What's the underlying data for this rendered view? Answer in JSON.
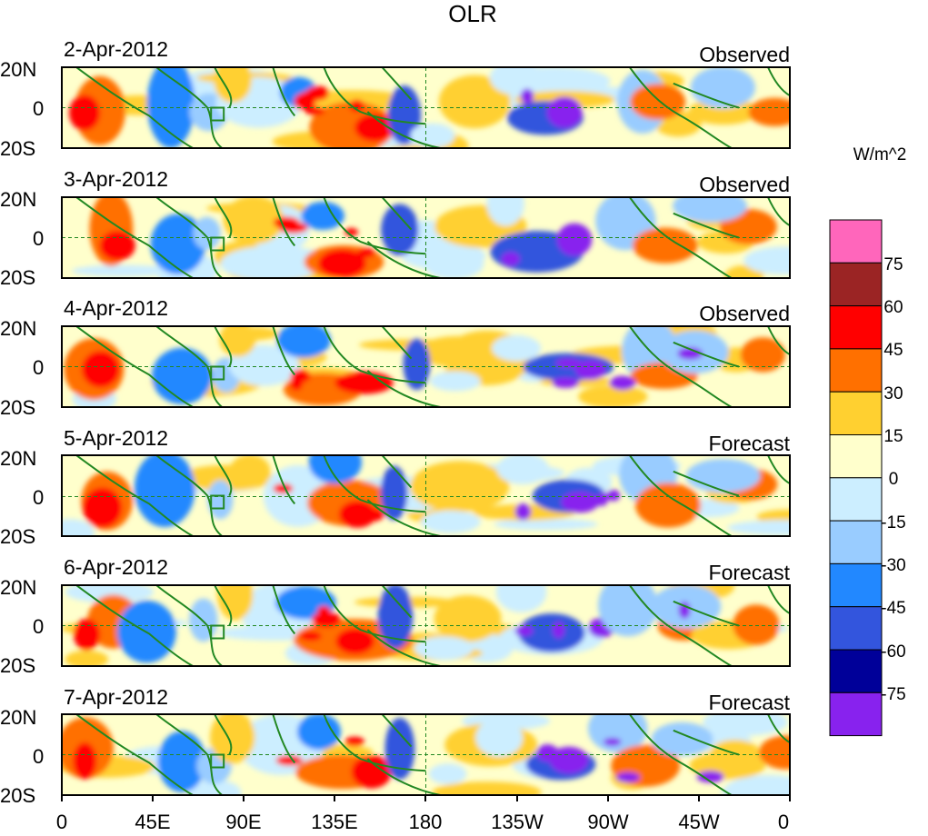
{
  "title": "OLR",
  "panels": [
    {
      "date": "2-Apr-2012",
      "kind": "Observed"
    },
    {
      "date": "3-Apr-2012",
      "kind": "Observed"
    },
    {
      "date": "4-Apr-2012",
      "kind": "Observed"
    },
    {
      "date": "5-Apr-2012",
      "kind": "Forecast"
    },
    {
      "date": "6-Apr-2012",
      "kind": "Forecast"
    },
    {
      "date": "7-Apr-2012",
      "kind": "Forecast"
    }
  ],
  "lat_labels": [
    "20N",
    "0",
    "20S"
  ],
  "lon_labels": [
    "0",
    "45E",
    "90E",
    "135E",
    "180",
    "135W",
    "90W",
    "45W",
    "0"
  ],
  "colorbar": {
    "unit_label": "W/m^2",
    "tick_labels": [
      "75",
      "60",
      "45",
      "30",
      "15",
      "0",
      "-15",
      "-30",
      "-45",
      "-60",
      "-75"
    ],
    "colors_top_to_bottom": [
      "#ff66bb",
      "#9b2424",
      "#ff0000",
      "#ff7000",
      "#ffd030",
      "#ffffcc",
      "#cceeff",
      "#99ccff",
      "#2288ff",
      "#3355dd",
      "#000099",
      "#8822ee"
    ]
  },
  "coast_color": "#228822"
}
